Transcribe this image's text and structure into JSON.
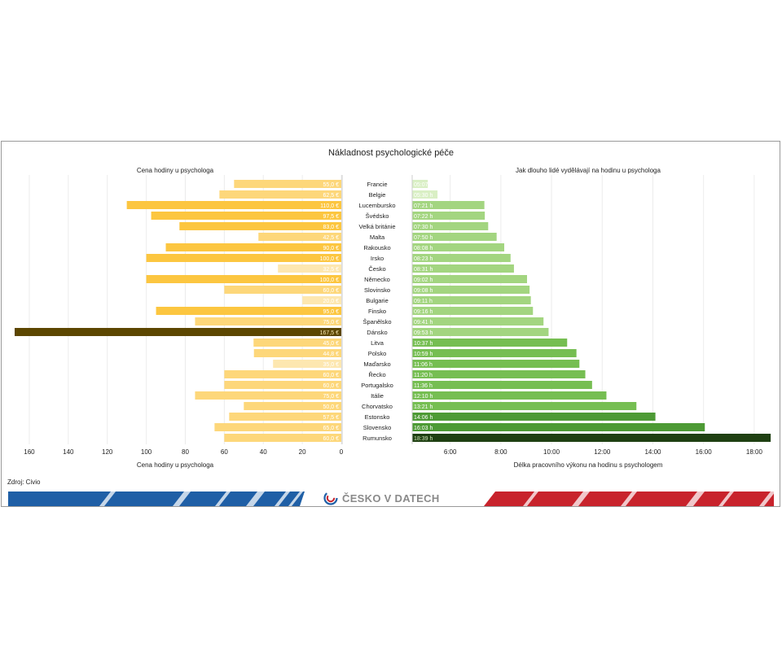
{
  "chart_data": {
    "type": "bar",
    "title": "Nákladnost psychologické péče",
    "left": {
      "subtitle": "Cena hodiny u psychologa",
      "xlabel": "Cena hodiny u psychologa",
      "xlim": [
        0,
        170
      ],
      "ticks": [
        160,
        140,
        120,
        100,
        80,
        60,
        40,
        20,
        0
      ],
      "unit": "€"
    },
    "right": {
      "subtitle": "Jak dlouho lidé vydělávají na hodinu u psychologa",
      "xlabel": "Délka pracovního výkonu na hodinu s psychologem",
      "ticks": [
        "6:00",
        "8:00",
        "10:00",
        "12:00",
        "14:00",
        "16:00",
        "18:00"
      ],
      "unit": "h"
    },
    "categories": [
      "Francie",
      "Belgie",
      "Lucembursko",
      "Švédsko",
      "Velká británie",
      "Malta",
      "Rakousko",
      "Irsko",
      "Česko",
      "Německo",
      "Slovinsko",
      "Bulgarie",
      "Finsko",
      "Španělsko",
      "Dánsko",
      "Litva",
      "Polsko",
      "Maďarsko",
      "Řecko",
      "Portugalsko",
      "Itálie",
      "Chorvatsko",
      "Estonsko",
      "Slovensko",
      "Rumunsko"
    ],
    "price_values": [
      55.0,
      62.5,
      110.0,
      97.5,
      83.0,
      42.5,
      90.0,
      100.0,
      32.5,
      100.0,
      60.0,
      20.0,
      95.0,
      75.0,
      167.5,
      45.0,
      44.8,
      35.0,
      60.0,
      60.0,
      75.0,
      50.0,
      57.5,
      65.0,
      60.0
    ],
    "price_labels": [
      "55,0 €",
      "62,5 €",
      "110,0 €",
      "97,5 €",
      "83,0 €",
      "42,5 €",
      "90,0 €",
      "100,0 €",
      "32,5 €",
      "100,0 €",
      "60,0 €",
      "20,0 €",
      "95,0 €",
      "75,0 €",
      "167,5 €",
      "45,0 €",
      "44,8 €",
      "35,0 €",
      "60,0 €",
      "60,0 €",
      "75,0 €",
      "50,0 €",
      "57,5 €",
      "65,0 €",
      "60,0 €"
    ],
    "time_labels": [
      "05:07 h",
      "05:30 h",
      "07:21 h",
      "07:22 h",
      "07:30 h",
      "07:50 h",
      "08:08 h",
      "08:23 h",
      "08:31 h",
      "09:02 h",
      "09:08 h",
      "09:11 h",
      "09:16 h",
      "09:41 h",
      "09:53 h",
      "10:37 h",
      "10:59 h",
      "11:06 h",
      "11:20 h",
      "11:36 h",
      "12:10 h",
      "13:21 h",
      "14:06 h",
      "16:03 h",
      "18:39 h"
    ],
    "source": "Zdroj: Civio"
  },
  "footer": {
    "brand": "ČESKO V DATECH"
  },
  "colors": {
    "price_palette": [
      "#fde7b0",
      "#fdd77a",
      "#fcc640",
      "#f0b400",
      "#5c4600"
    ],
    "time_palette": [
      "#d9efc4",
      "#a3d580",
      "#76be52",
      "#4d9a35",
      "#1f4012"
    ],
    "banner_blue": "#1f5fa6",
    "banner_red": "#c8232c"
  }
}
